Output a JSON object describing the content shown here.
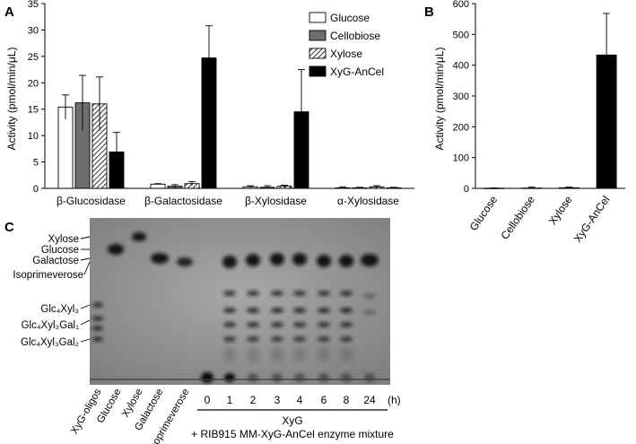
{
  "chart_data": [
    {
      "panel": "A",
      "type": "bar",
      "ylabel": "Activity (pmol/min/μL)",
      "ylim": [
        0,
        35
      ],
      "yticks": [
        0,
        5,
        10,
        15,
        20,
        25,
        30,
        35
      ],
      "categories": [
        "β-Glucosidase",
        "β-Galactosidase",
        "β-Xylosidase",
        "α-Xylosidase"
      ],
      "series": [
        {
          "name": "Glucose",
          "fill": "#ffffff",
          "pattern": "none",
          "values": [
            15.4,
            0.8,
            0.3,
            0.1
          ],
          "errors": [
            2.3,
            0.1,
            0.2,
            0.2
          ]
        },
        {
          "name": "Cellobiose",
          "fill": "#6e6e6e",
          "pattern": "none",
          "values": [
            16.2,
            0.4,
            0.2,
            0.1
          ],
          "errors": [
            5.2,
            0.3,
            0.3,
            0.1
          ]
        },
        {
          "name": "Xylose",
          "fill": "#ffffff",
          "pattern": "hatch",
          "values": [
            16.0,
            0.9,
            0.4,
            0.3
          ],
          "errors": [
            5.1,
            0.4,
            0.2,
            0.2
          ]
        },
        {
          "name": "XyG-AnCel",
          "fill": "#000000",
          "pattern": "none",
          "values": [
            6.9,
            24.7,
            14.5,
            0.1
          ],
          "errors": [
            3.7,
            6.1,
            8.0,
            0.1
          ]
        }
      ],
      "legend_position": "top-right"
    },
    {
      "panel": "B",
      "type": "bar",
      "ylabel": "Activity (pmol/min/μL)",
      "ylim": [
        0,
        600
      ],
      "yticks": [
        0,
        100,
        200,
        300,
        400,
        500,
        600
      ],
      "categories": [
        "Glucose",
        "Cellobiose",
        "Xylose",
        "XyG-AnCel"
      ],
      "values": [
        0.5,
        1.0,
        2.0,
        433
      ],
      "errors": [
        1.0,
        3.0,
        2.0,
        135
      ],
      "fill": "#000000"
    }
  ],
  "panel_c": {
    "letter": "C",
    "left_labels": [
      "Xylose",
      "Glucose",
      "Galactose",
      "Isoprimeverose",
      "Glc₄Xyl₃",
      "Glc₄Xyl₃Gal₁",
      "Glc₄Xyl₃Gal₂"
    ],
    "lane_labels": [
      "XyG-oligos",
      "Glucose",
      "Xylose",
      "Galactose",
      "Isoprimeverose"
    ],
    "time_labels": [
      "0",
      "1",
      "2",
      "3",
      "4",
      "6",
      "8",
      "24"
    ],
    "time_unit": "(h)",
    "group_label": "XyG",
    "group_sublabel": "+ RIB915 MM-XyG-AnCel enzyme mixture"
  }
}
